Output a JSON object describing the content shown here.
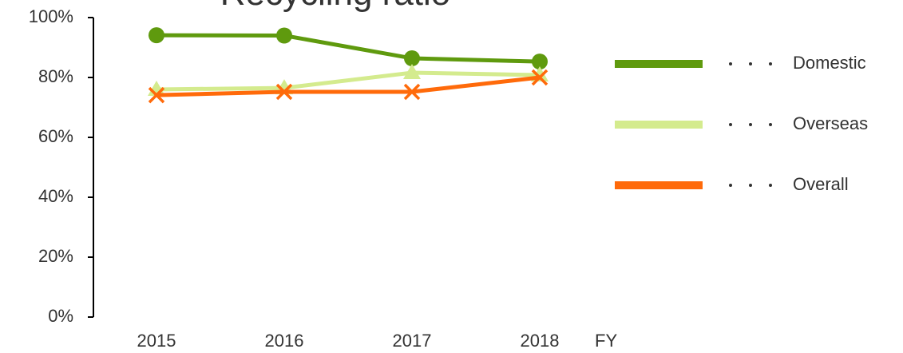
{
  "chart_data": {
    "type": "line",
    "title": "Recycling ratio",
    "categories": [
      "2015",
      "2016",
      "2017",
      "2018"
    ],
    "x_label": "FY",
    "series": [
      {
        "name": "Domestic",
        "color": "#5f9a0e",
        "marker": "circle",
        "values": [
          94.1,
          94,
          86.4,
          85.3
        ]
      },
      {
        "name": "Overseas",
        "color": "#d4eb8e",
        "marker": "triangle",
        "values": [
          76,
          76.5,
          81.6,
          80.8
        ]
      },
      {
        "name": "Overall",
        "color": "#ff6a0a",
        "marker": "x",
        "values": [
          74.1,
          75.2,
          75.2,
          80
        ]
      }
    ],
    "ylim": [
      0,
      100
    ],
    "yticks": [
      {
        "value": 0,
        "label": "0%"
      },
      {
        "value": 20,
        "label": "20%"
      },
      {
        "value": 40,
        "label": "40%"
      },
      {
        "value": 60,
        "label": "60%"
      },
      {
        "value": 80,
        "label": "80%"
      },
      {
        "value": 100,
        "label": "100%"
      }
    ],
    "grid": false,
    "legend": "right"
  }
}
